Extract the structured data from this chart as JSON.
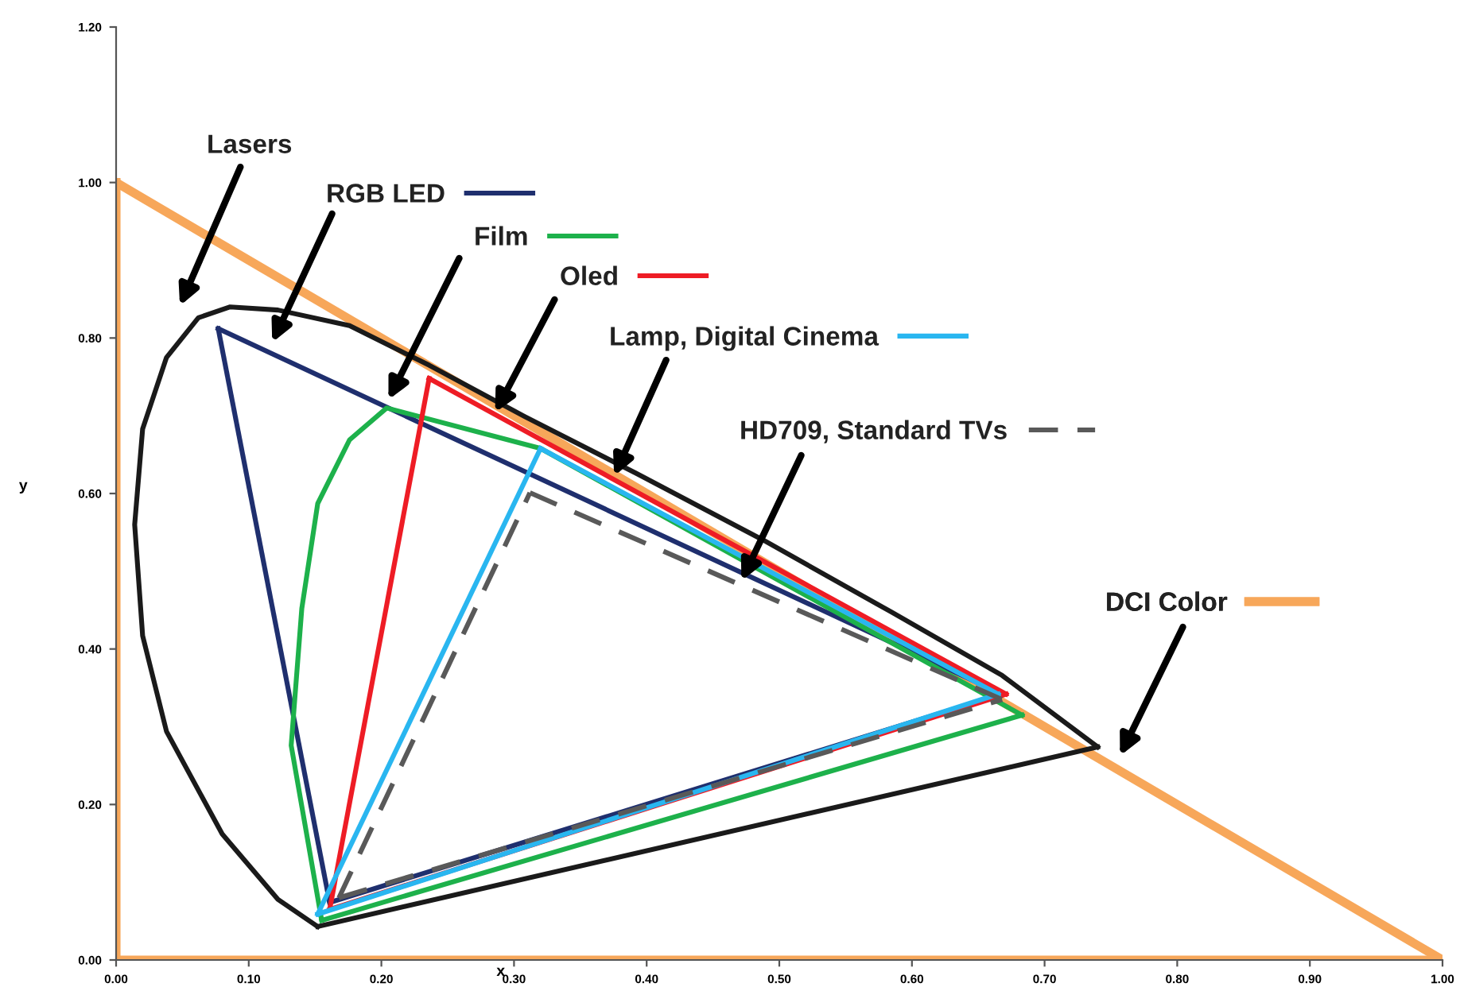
{
  "chart_data": {
    "type": "line",
    "xlabel": "x",
    "ylabel": "y",
    "xlim": [
      0,
      1
    ],
    "ylim": [
      0,
      1.2
    ],
    "xticks": [
      {
        "value": 0,
        "label": "0.00"
      },
      {
        "value": 0.1,
        "label": "0.10"
      },
      {
        "value": 0.2,
        "label": "0.20"
      },
      {
        "value": 0.3,
        "label": "0.30"
      },
      {
        "value": 0.4,
        "label": "0.40"
      },
      {
        "value": 0.5,
        "label": "0.50"
      },
      {
        "value": 0.6,
        "label": "0.60"
      },
      {
        "value": 0.7,
        "label": "0.70"
      },
      {
        "value": 0.8,
        "label": "0.80"
      },
      {
        "value": 0.9,
        "label": "0.90"
      },
      {
        "value": 1,
        "label": "1.00"
      }
    ],
    "yticks": [
      {
        "value": 0,
        "label": "0.00"
      },
      {
        "value": 0.2,
        "label": "0.20"
      },
      {
        "value": 0.4,
        "label": "0.40"
      },
      {
        "value": 0.6,
        "label": "0.60"
      },
      {
        "value": 0.8,
        "label": "0.80"
      },
      {
        "value": 1,
        "label": "1.00"
      },
      {
        "value": 1.2,
        "label": "1.20"
      }
    ],
    "grid": false,
    "legend": "center left",
    "marker": "none",
    "annotations": [
      "Lasers"
    ],
    "series": [
      {
        "color": "#1a1a1a",
        "x": [
          0.152,
          0.122,
          0.08,
          0.038,
          0.02,
          0.014,
          0.02,
          0.038,
          0.062,
          0.086,
          0.122,
          0.176,
          0.236,
          0.308,
          0.392,
          0.488,
          0.584,
          0.668,
          0.74
        ],
        "values": [
          0.043,
          0.078,
          0.162,
          0.294,
          0.417,
          0.56,
          0.683,
          0.775,
          0.826,
          0.84,
          0.836,
          0.816,
          0.765,
          0.699,
          0.626,
          0.54,
          0.448,
          0.366,
          0.274
        ]
      },
      {
        "color": "#1a1a1a",
        "x": [
          0.152,
          0.74
        ],
        "values": [
          0.043,
          0.274
        ]
      },
      {
        "name": "RGB LED",
        "color": "#1f2f6e",
        "x": [
          0.077,
          0.668
        ],
        "values": [
          0.812,
          0.342
        ]
      },
      {
        "color": "#1f2f6e",
        "x": [
          0.077,
          0.161
        ],
        "values": [
          0.812,
          0.074
        ]
      },
      {
        "color": "#1f2f6e",
        "x": [
          0.161,
          0.668
        ],
        "values": [
          0.074,
          0.342
        ]
      },
      {
        "name": "Film",
        "color": "#1db14b",
        "x": [
          0.155,
          0.132,
          0.14,
          0.152,
          0.176,
          0.204,
          0.32,
          0.683
        ],
        "values": [
          0.051,
          0.276,
          0.452,
          0.587,
          0.669,
          0.71,
          0.658,
          0.315
        ]
      },
      {
        "color": "#1db14b",
        "x": [
          0.155,
          0.683
        ],
        "values": [
          0.051,
          0.315
        ]
      },
      {
        "name": "Oled",
        "color": "#ee1c25",
        "x": [
          0.236,
          0.671
        ],
        "values": [
          0.748,
          0.342
        ]
      },
      {
        "color": "#ee1c25",
        "x": [
          0.161,
          0.236
        ],
        "values": [
          0.065,
          0.748
        ]
      },
      {
        "color": "#ee1c25",
        "x": [
          0.161,
          0.671
        ],
        "values": [
          0.065,
          0.342
        ]
      },
      {
        "name": "Lamp, Digital Cinema",
        "color": "#29b6f0",
        "x": [
          0.32,
          0.665
        ],
        "values": [
          0.658,
          0.342
        ]
      },
      {
        "color": "#29b6f0",
        "x": [
          0.152,
          0.32
        ],
        "values": [
          0.059,
          0.658
        ]
      },
      {
        "color": "#29b6f0",
        "x": [
          0.152,
          0.665
        ],
        "values": [
          0.059,
          0.342
        ]
      },
      {
        "name": "HD709, Standard TVs",
        "color": "#595959",
        "line_style": "dashed",
        "x": [
          0.312,
          0.668
        ],
        "values": [
          0.601,
          0.335
        ]
      },
      {
        "color": "#595959",
        "line_style": "dashed",
        "x": [
          0.168,
          0.312
        ],
        "values": [
          0.08,
          0.601
        ]
      },
      {
        "color": "#595959",
        "line_style": "dashed",
        "x": [
          0.168,
          0.668
        ],
        "values": [
          0.08,
          0.335
        ]
      },
      {
        "name": "DCI Color",
        "color": "#f7a75a",
        "x": [
          0,
          1
        ],
        "values": [
          1,
          0
        ]
      },
      {
        "color": "#f7a75a",
        "x": [
          0,
          0
        ],
        "values": [
          0,
          1
        ]
      },
      {
        "color": "#f7a75a",
        "x": [
          0,
          1
        ],
        "values": [
          0,
          0
        ]
      }
    ]
  }
}
